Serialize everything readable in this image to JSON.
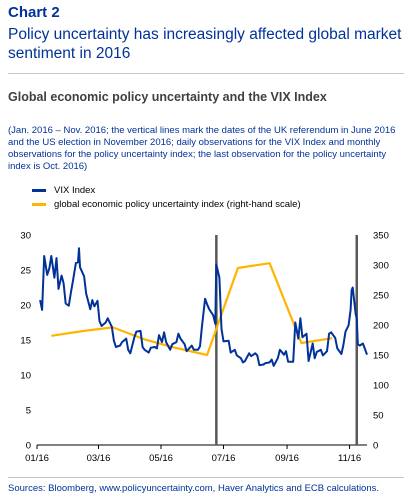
{
  "header": {
    "chart_label": "Chart 2",
    "title": "Policy uncertainty has increasingly affected global market sentiment in 2016",
    "subtitle": "Global economic policy uncertainty and the VIX Index",
    "note": "(Jan. 2016 – Nov. 2016; the vertical lines mark the dates of the UK referendum in June 2016 and the US election in November 2016; daily observations for the VIX Index and monthly observations for the policy uncertainty index; the last observation for the policy uncertainty index is Oct. 2016)",
    "sources": "Sources: Bloomberg, www.policyuncertainty.com, Haver Analytics and ECB calculations."
  },
  "chart_data": {
    "type": "line",
    "x_axis": {
      "ticks": [
        "01/16",
        "03/16",
        "05/16",
        "07/16",
        "09/16",
        "11/16"
      ],
      "range": [
        "2016-01-01",
        "2016-11-18"
      ]
    },
    "y_left": {
      "min": 0,
      "max": 30,
      "ticks": [
        0,
        5,
        10,
        15,
        20,
        25,
        30
      ]
    },
    "y_right": {
      "min": 0,
      "max": 350,
      "ticks": [
        0,
        50,
        100,
        150,
        200,
        250,
        300,
        350
      ]
    },
    "vertical_lines": [
      {
        "date": "2016-06-24",
        "event": "UK referendum"
      },
      {
        "date": "2016-11-08",
        "event": "US election"
      }
    ],
    "series": [
      {
        "name": "VIX Index",
        "axis": "left",
        "color": "#003299",
        "frequency": "daily",
        "points": [
          [
            "2016-01-04",
            20.7
          ],
          [
            "2016-01-06",
            19.3
          ],
          [
            "2016-01-08",
            27.0
          ],
          [
            "2016-01-11",
            24.3
          ],
          [
            "2016-01-13",
            25.2
          ],
          [
            "2016-01-15",
            27.0
          ],
          [
            "2016-01-18",
            23.9
          ],
          [
            "2016-01-20",
            26.7
          ],
          [
            "2016-01-22",
            22.3
          ],
          [
            "2016-01-25",
            24.2
          ],
          [
            "2016-01-27",
            23.1
          ],
          [
            "2016-01-29",
            20.2
          ],
          [
            "2016-02-01",
            19.9
          ],
          [
            "2016-02-03",
            21.7
          ],
          [
            "2016-02-05",
            23.4
          ],
          [
            "2016-02-08",
            26.0
          ],
          [
            "2016-02-10",
            26.1
          ],
          [
            "2016-02-11",
            28.1
          ],
          [
            "2016-02-12",
            25.4
          ],
          [
            "2016-02-16",
            24.1
          ],
          [
            "2016-02-18",
            21.6
          ],
          [
            "2016-02-22",
            19.4
          ],
          [
            "2016-02-24",
            20.7
          ],
          [
            "2016-02-26",
            19.8
          ],
          [
            "2016-02-29",
            20.6
          ],
          [
            "2016-03-02",
            17.7
          ],
          [
            "2016-03-04",
            17.0
          ],
          [
            "2016-03-08",
            17.5
          ],
          [
            "2016-03-10",
            18.1
          ],
          [
            "2016-03-14",
            16.9
          ],
          [
            "2016-03-16",
            14.9
          ],
          [
            "2016-03-18",
            14.0
          ],
          [
            "2016-03-22",
            14.2
          ],
          [
            "2016-03-24",
            14.7
          ],
          [
            "2016-03-28",
            15.2
          ],
          [
            "2016-03-30",
            13.6
          ],
          [
            "2016-04-01",
            13.1
          ],
          [
            "2016-04-05",
            15.4
          ],
          [
            "2016-04-07",
            16.2
          ],
          [
            "2016-04-11",
            16.3
          ],
          [
            "2016-04-13",
            14.0
          ],
          [
            "2016-04-15",
            13.6
          ],
          [
            "2016-04-19",
            13.2
          ],
          [
            "2016-04-21",
            13.9
          ],
          [
            "2016-04-25",
            14.0
          ],
          [
            "2016-04-27",
            13.8
          ],
          [
            "2016-04-29",
            15.7
          ],
          [
            "2016-05-02",
            14.7
          ],
          [
            "2016-05-04",
            16.1
          ],
          [
            "2016-05-06",
            14.7
          ],
          [
            "2016-05-10",
            13.6
          ],
          [
            "2016-05-12",
            14.4
          ],
          [
            "2016-05-16",
            14.7
          ],
          [
            "2016-05-18",
            15.9
          ],
          [
            "2016-05-20",
            15.2
          ],
          [
            "2016-05-24",
            14.4
          ],
          [
            "2016-05-26",
            13.4
          ],
          [
            "2016-05-31",
            14.2
          ],
          [
            "2016-06-02",
            13.6
          ],
          [
            "2016-06-06",
            13.6
          ],
          [
            "2016-06-08",
            14.1
          ],
          [
            "2016-06-10",
            17.0
          ],
          [
            "2016-06-13",
            20.9
          ],
          [
            "2016-06-15",
            20.1
          ],
          [
            "2016-06-17",
            19.4
          ],
          [
            "2016-06-21",
            18.5
          ],
          [
            "2016-06-23",
            17.3
          ],
          [
            "2016-06-24",
            25.8
          ],
          [
            "2016-06-27",
            23.9
          ],
          [
            "2016-06-29",
            16.6
          ],
          [
            "2016-07-01",
            14.8
          ],
          [
            "2016-07-06",
            14.9
          ],
          [
            "2016-07-08",
            13.2
          ],
          [
            "2016-07-12",
            13.6
          ],
          [
            "2016-07-14",
            12.8
          ],
          [
            "2016-07-18",
            12.4
          ],
          [
            "2016-07-20",
            11.8
          ],
          [
            "2016-07-22",
            12.0
          ],
          [
            "2016-07-26",
            13.1
          ],
          [
            "2016-07-28",
            12.7
          ],
          [
            "2016-08-01",
            13.1
          ],
          [
            "2016-08-03",
            12.8
          ],
          [
            "2016-08-05",
            11.4
          ],
          [
            "2016-08-09",
            11.5
          ],
          [
            "2016-08-11",
            11.7
          ],
          [
            "2016-08-15",
            11.8
          ],
          [
            "2016-08-17",
            12.2
          ],
          [
            "2016-08-19",
            11.3
          ],
          [
            "2016-08-23",
            12.4
          ],
          [
            "2016-08-25",
            13.6
          ],
          [
            "2016-08-29",
            12.9
          ],
          [
            "2016-08-31",
            13.4
          ],
          [
            "2016-09-02",
            11.9
          ],
          [
            "2016-09-07",
            11.9
          ],
          [
            "2016-09-09",
            17.5
          ],
          [
            "2016-09-12",
            15.2
          ],
          [
            "2016-09-14",
            18.1
          ],
          [
            "2016-09-16",
            15.4
          ],
          [
            "2016-09-20",
            15.9
          ],
          [
            "2016-09-22",
            12.0
          ],
          [
            "2016-09-26",
            14.5
          ],
          [
            "2016-09-28",
            12.4
          ],
          [
            "2016-09-30",
            13.3
          ],
          [
            "2016-10-04",
            13.6
          ],
          [
            "2016-10-06",
            12.8
          ],
          [
            "2016-10-10",
            13.4
          ],
          [
            "2016-10-12",
            15.9
          ],
          [
            "2016-10-14",
            16.1
          ],
          [
            "2016-10-18",
            15.3
          ],
          [
            "2016-10-20",
            13.8
          ],
          [
            "2016-10-24",
            13.0
          ],
          [
            "2016-10-26",
            14.3
          ],
          [
            "2016-10-28",
            16.2
          ],
          [
            "2016-10-31",
            17.1
          ],
          [
            "2016-11-02",
            19.3
          ],
          [
            "2016-11-03",
            22.1
          ],
          [
            "2016-11-04",
            22.5
          ],
          [
            "2016-11-07",
            18.7
          ],
          [
            "2016-11-08",
            18.0
          ],
          [
            "2016-11-09",
            14.4
          ],
          [
            "2016-11-11",
            14.2
          ],
          [
            "2016-11-14",
            14.5
          ],
          [
            "2016-11-16",
            13.7
          ],
          [
            "2016-11-18",
            12.9
          ]
        ]
      },
      {
        "name": "global economic policy uncertainty index (right-hand scale)",
        "axis": "right",
        "color": "#ffb400",
        "frequency": "monthly",
        "points": [
          [
            "2016-01-15",
            182
          ],
          [
            "2016-02-15",
            190
          ],
          [
            "2016-03-15",
            196
          ],
          [
            "2016-04-15",
            176
          ],
          [
            "2016-05-15",
            162
          ],
          [
            "2016-06-15",
            150
          ],
          [
            "2016-07-15",
            295
          ],
          [
            "2016-08-15",
            303
          ],
          [
            "2016-09-15",
            170
          ],
          [
            "2016-10-15",
            178
          ]
        ]
      }
    ]
  }
}
